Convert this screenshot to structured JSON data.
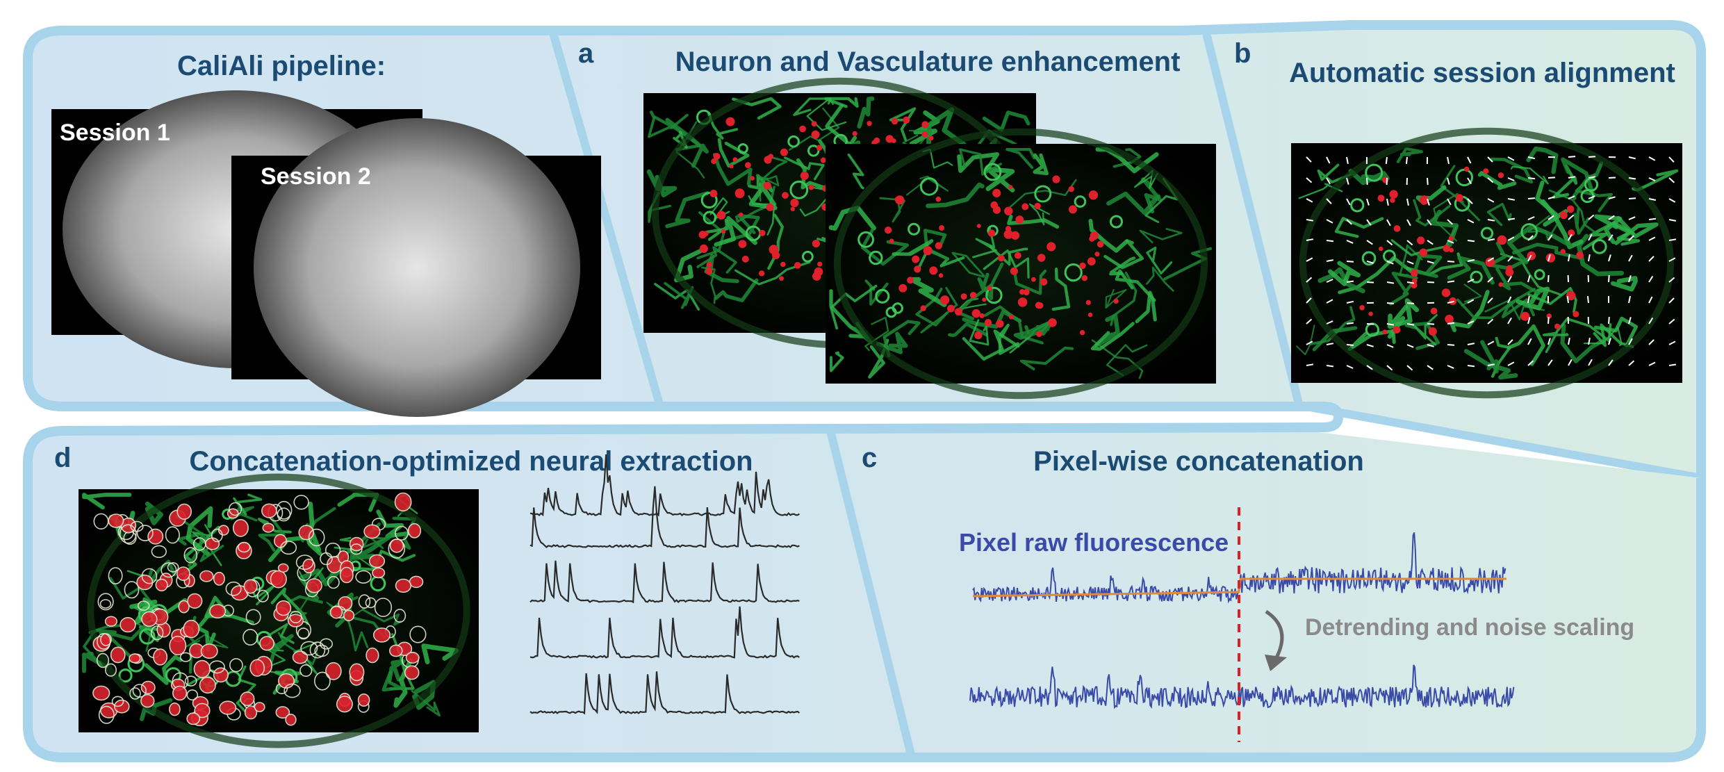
{
  "pipeline": {
    "title": "CaliAli pipeline:",
    "session1_label": "Session 1",
    "session2_label": "Session 2"
  },
  "panel_a": {
    "letter": "a",
    "title": "Neuron and Vasculature enhancement"
  },
  "panel_b": {
    "letter": "b",
    "title": "Automatic session alignment"
  },
  "panel_c": {
    "letter": "c",
    "title": "Pixel-wise concatenation",
    "raw_label": "Pixel raw fluorescence",
    "arrow_label": "Detrending and noise scaling"
  },
  "panel_d": {
    "letter": "d",
    "title": "Concatenation-optimized neural extraction"
  },
  "colors": {
    "border": "#a7d4ea",
    "panel_blue": "#cfe3f2",
    "panel_green": "#d7ebe5",
    "title": "#1b4a72",
    "trace_blue": "#3a4aa8",
    "trend_orange": "#e08a3c",
    "cut_red": "#e02020",
    "vessel_green": "#2fb24a",
    "neuron_red": "#e0202a"
  }
}
